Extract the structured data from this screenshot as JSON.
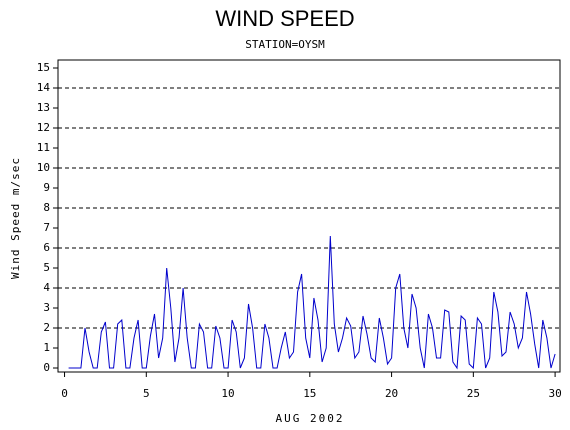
{
  "chart_data": {
    "type": "line",
    "title": "WIND SPEED",
    "subtitle": "STATION=OYSM",
    "xlabel": "AUG 2002",
    "ylabel": "Wind Speed m/sec",
    "xlim": [
      -0.4,
      30.3
    ],
    "ylim": [
      -0.2,
      15.4
    ],
    "xticks": [
      0,
      5,
      10,
      15,
      20,
      25,
      30
    ],
    "yticks": [
      0,
      1,
      2,
      3,
      4,
      5,
      6,
      7,
      8,
      9,
      10,
      11,
      12,
      13,
      14,
      15
    ],
    "ygrid": [
      2,
      4,
      6,
      8,
      10,
      12,
      14
    ],
    "x": [
      0.25,
      0.5,
      0.75,
      1,
      1.25,
      1.5,
      1.75,
      2,
      2.25,
      2.5,
      2.75,
      3,
      3.25,
      3.5,
      3.75,
      4,
      4.25,
      4.5,
      4.75,
      5,
      5.25,
      5.5,
      5.75,
      6,
      6.25,
      6.5,
      6.75,
      7,
      7.25,
      7.5,
      7.75,
      8,
      8.25,
      8.5,
      8.75,
      9,
      9.25,
      9.5,
      9.75,
      10,
      10.25,
      10.5,
      10.75,
      11,
      11.25,
      11.5,
      11.75,
      12,
      12.25,
      12.5,
      12.75,
      13,
      13.25,
      13.5,
      13.75,
      14,
      14.25,
      14.5,
      14.75,
      15,
      15.25,
      15.5,
      15.75,
      16,
      16.25,
      16.5,
      16.75,
      17,
      17.25,
      17.5,
      17.75,
      18,
      18.25,
      18.5,
      18.75,
      19,
      19.25,
      19.5,
      19.75,
      20,
      20.25,
      20.5,
      20.75,
      21,
      21.25,
      21.5,
      21.75,
      22,
      22.25,
      22.5,
      22.75,
      23,
      23.25,
      23.5,
      23.75,
      24,
      24.25,
      24.5,
      24.75,
      25,
      25.25,
      25.5,
      25.75,
      26,
      26.25,
      26.5,
      26.75,
      27,
      27.25,
      27.5,
      27.75,
      28,
      28.25,
      28.5,
      28.75,
      29,
      29.25,
      29.5,
      29.75,
      30
    ],
    "series": [
      {
        "name": "Wind Speed",
        "color": "#0000cc",
        "values": [
          0,
          0,
          0,
          0,
          2,
          0.8,
          0,
          0,
          1.8,
          2.3,
          0,
          0,
          2.2,
          2.4,
          0,
          0,
          1.5,
          2.4,
          0,
          0,
          1.6,
          2.7,
          0.5,
          1.5,
          5,
          3,
          0.3,
          1.5,
          4,
          1.5,
          0,
          0,
          2.2,
          1.8,
          0,
          0,
          2.1,
          1.5,
          0,
          0,
          2.4,
          1.8,
          0,
          0.5,
          3.2,
          2,
          0,
          0,
          2.2,
          1.5,
          0,
          0,
          1,
          1.8,
          0.5,
          0.8,
          3.8,
          4.7,
          1.5,
          0.5,
          3.5,
          2.4,
          0.3,
          1,
          6.6,
          2.2,
          0.8,
          1.5,
          2.5,
          2.1,
          0.5,
          0.8,
          2.6,
          1.7,
          0.5,
          0.3,
          2.5,
          1.5,
          0.2,
          0.5,
          4,
          4.7,
          2,
          1,
          3.7,
          3,
          1,
          0,
          2.7,
          2,
          0.5,
          0.5,
          2.9,
          2.8,
          0.3,
          0,
          2.6,
          2.4,
          0.2,
          0,
          2.5,
          2.2,
          0,
          0.5,
          3.8,
          2.8,
          0.6,
          0.8,
          2.8,
          2.2,
          1,
          1.5,
          3.8,
          2.7,
          1.2,
          0,
          2.4,
          1.5,
          0,
          0.7
        ]
      }
    ]
  }
}
